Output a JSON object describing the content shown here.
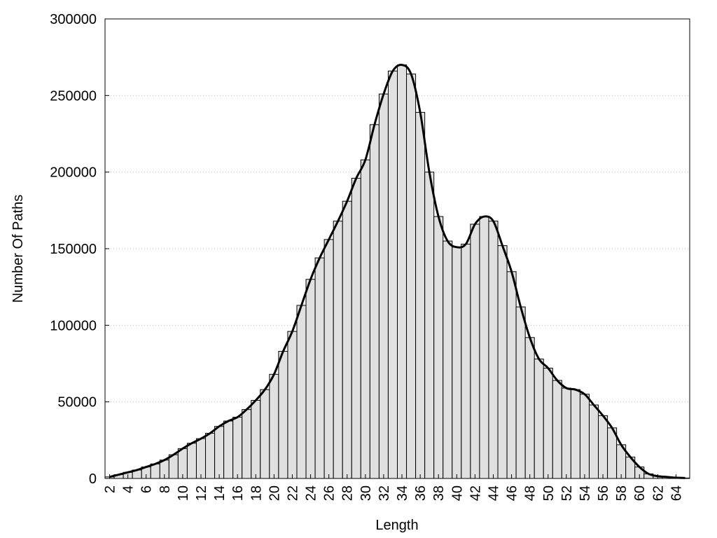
{
  "chart_data": {
    "type": "bar",
    "x_label": "Length",
    "y_label": "Number Of Paths",
    "x": [
      2,
      3,
      4,
      5,
      6,
      7,
      8,
      9,
      10,
      11,
      12,
      13,
      14,
      15,
      16,
      17,
      18,
      19,
      20,
      21,
      22,
      23,
      24,
      25,
      26,
      27,
      28,
      29,
      30,
      31,
      32,
      33,
      34,
      35,
      36,
      37,
      38,
      39,
      40,
      41,
      42,
      43,
      44,
      45,
      46,
      47,
      48,
      49,
      50,
      51,
      52,
      53,
      54,
      55,
      56,
      57,
      58,
      59,
      60,
      61,
      62,
      63,
      64,
      65
    ],
    "values": [
      1000,
      2500,
      4000,
      5500,
      7500,
      9500,
      12000,
      15500,
      19500,
      23000,
      26000,
      29500,
      34000,
      37500,
      40000,
      45000,
      51000,
      58000,
      68000,
      83000,
      96000,
      113000,
      130000,
      144000,
      156000,
      168000,
      181000,
      196000,
      208000,
      231000,
      251000,
      266000,
      270000,
      264000,
      239000,
      200000,
      171000,
      155000,
      151000,
      153000,
      166000,
      171000,
      168000,
      152000,
      135000,
      112000,
      92000,
      78000,
      72000,
      64000,
      59000,
      58000,
      55000,
      48000,
      41000,
      33000,
      22000,
      14000,
      7500,
      3000,
      1500,
      1000,
      500,
      300
    ],
    "color": "#e0e0e0",
    "edge_color": "#000000",
    "smooth_line": true,
    "line_color": "#000000",
    "xlim": [
      1.5,
      65.5
    ],
    "xticks": [
      2,
      4,
      6,
      8,
      10,
      12,
      14,
      16,
      18,
      20,
      22,
      24,
      26,
      28,
      30,
      32,
      34,
      36,
      38,
      40,
      42,
      44,
      46,
      48,
      50,
      52,
      54,
      56,
      58,
      60,
      62,
      64
    ],
    "ylim": [
      0,
      300000
    ],
    "yticks": [
      0,
      50000,
      100000,
      150000,
      200000,
      250000,
      300000
    ],
    "grid": true
  }
}
